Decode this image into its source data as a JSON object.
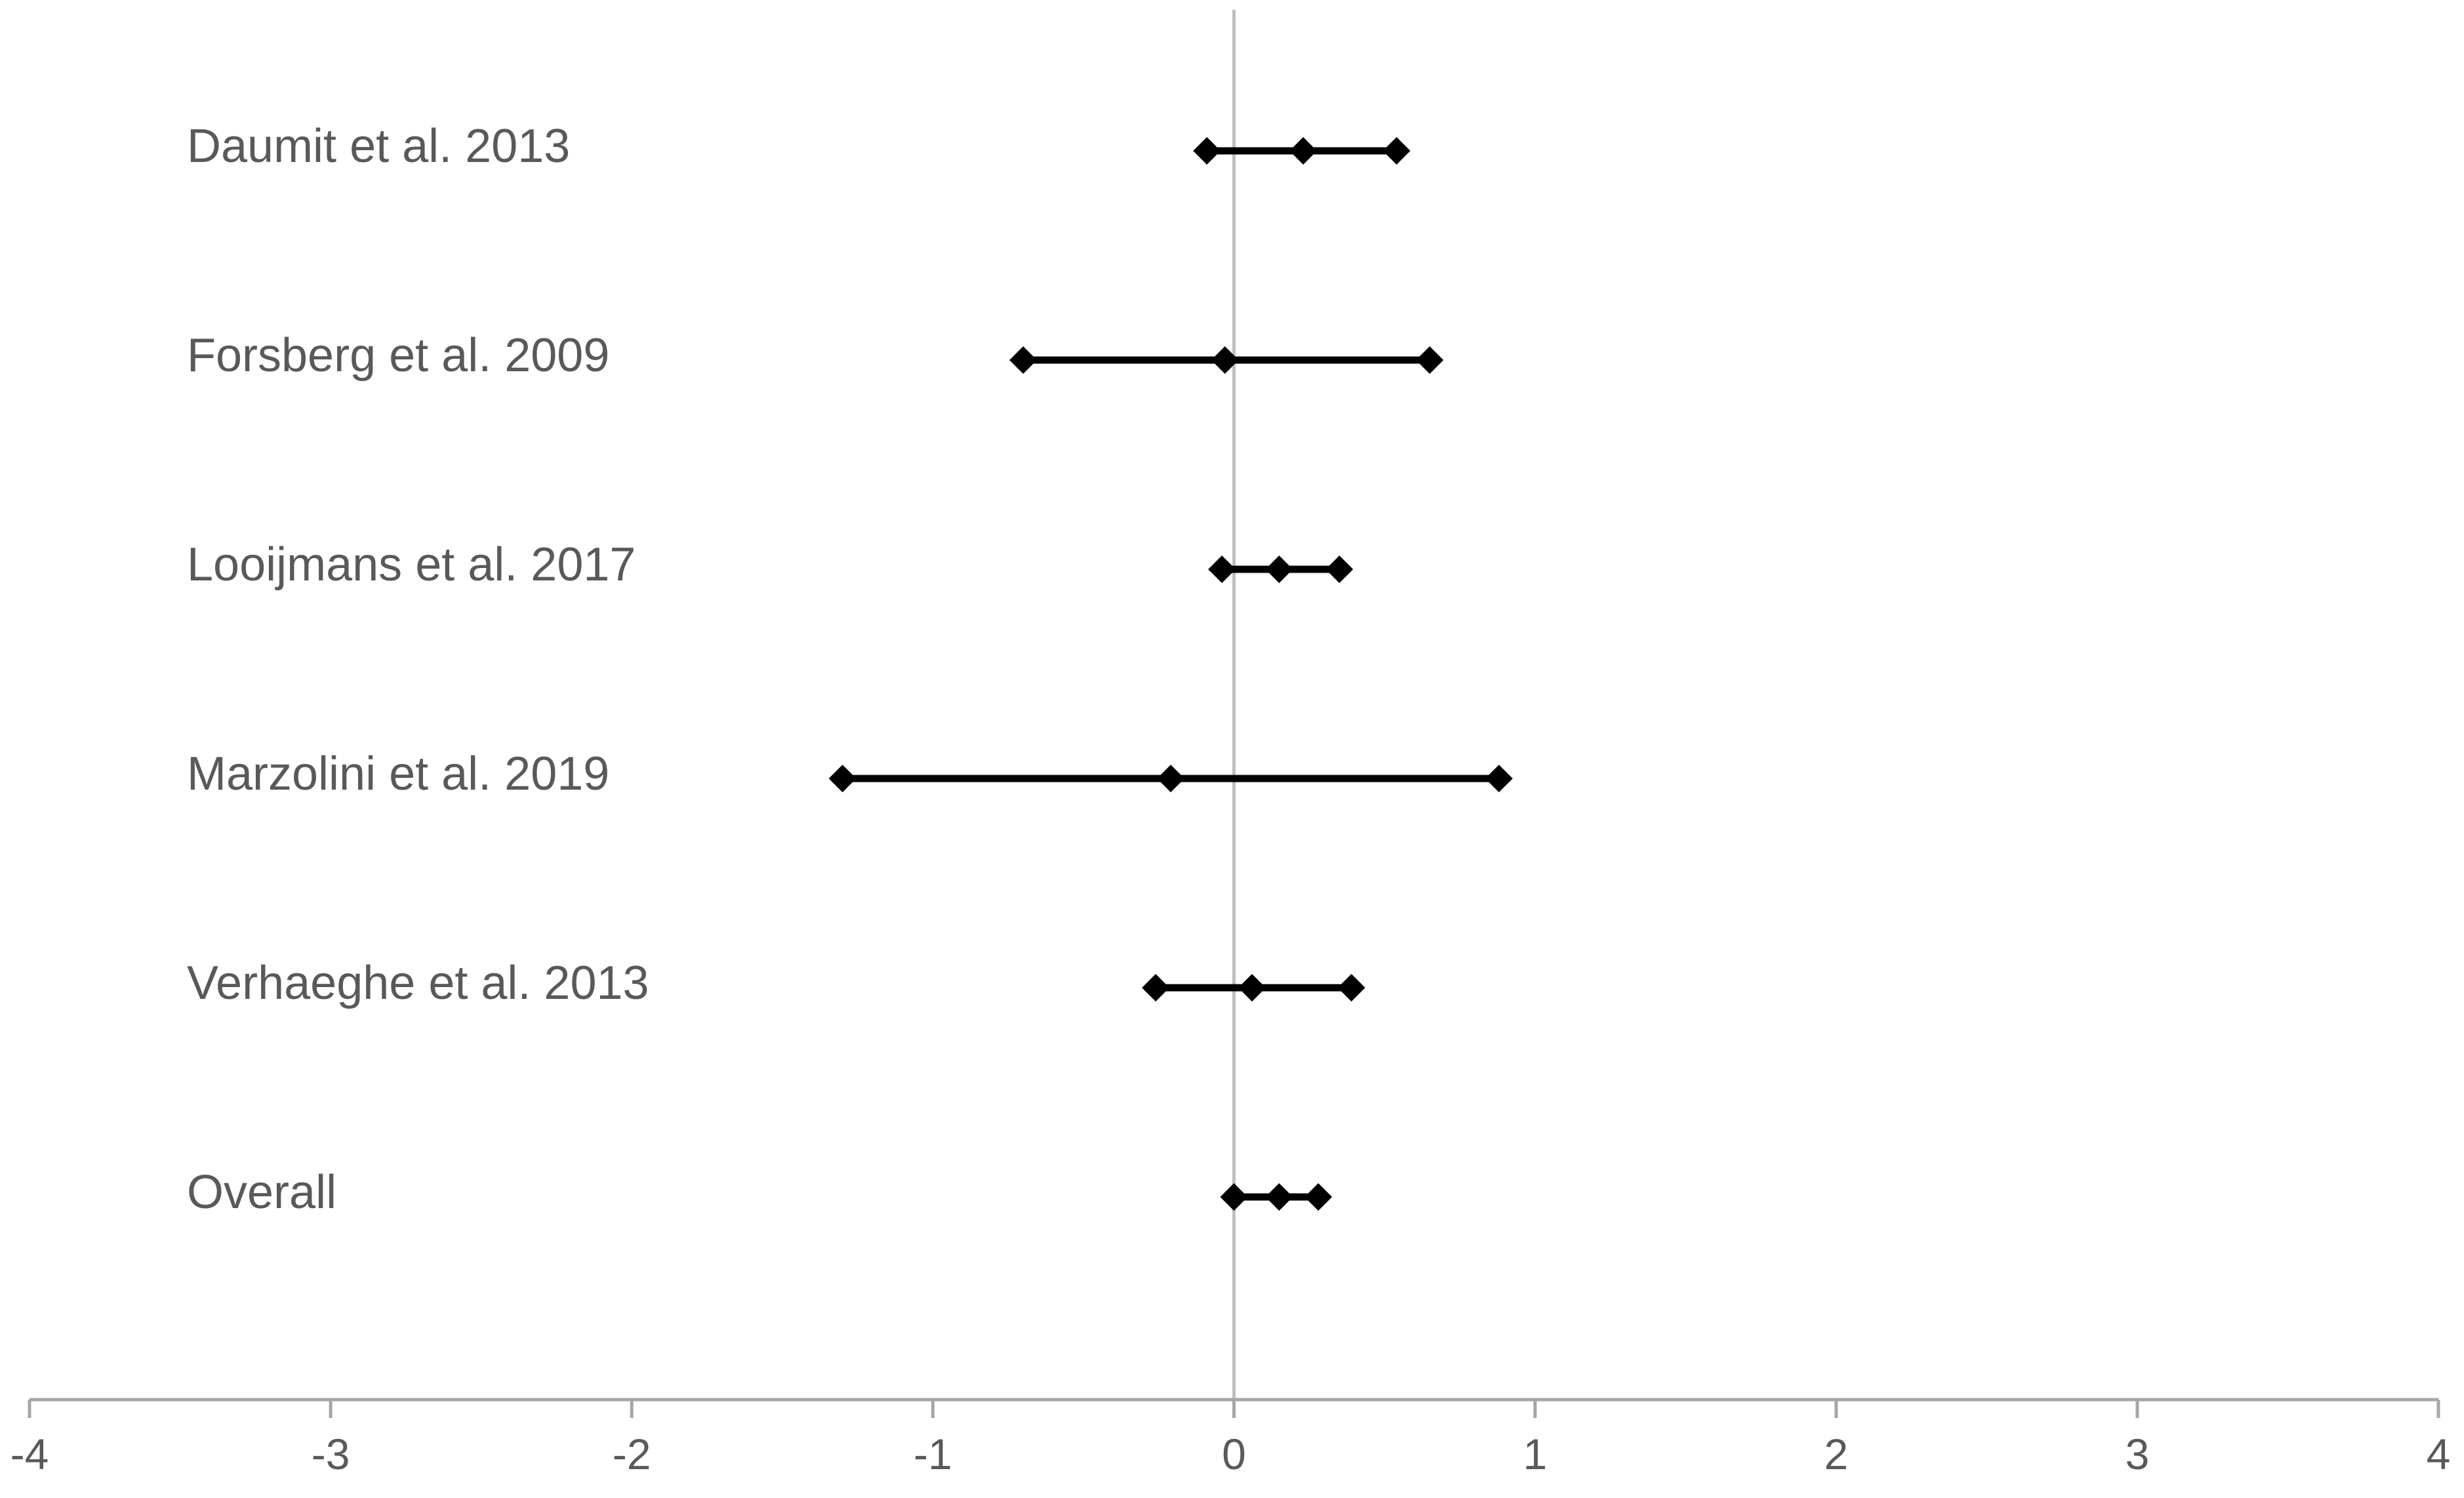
{
  "chart_data": {
    "type": "scatter",
    "subtype": "forest-plot",
    "title": "",
    "xlabel": "",
    "ylabel": "",
    "xlim": [
      -4,
      4
    ],
    "xticks": [
      -4,
      -3,
      -2,
      -1,
      0,
      1,
      2,
      3,
      4
    ],
    "xtick_labels": [
      "-4",
      "-3",
      "-2",
      "-1",
      "0",
      "1",
      "2",
      "3",
      "4"
    ],
    "reference_line": 0,
    "grid": false,
    "legend": "none",
    "colors": {
      "marker": "#000000",
      "reference_line": "#bfbfbf",
      "axis": "#a6a6a6",
      "label_text": "#595959"
    },
    "rows": [
      {
        "label": "Daumit et al. 2013",
        "lower": -0.09,
        "estimate": 0.23,
        "upper": 0.54
      },
      {
        "label": "Forsberg et al. 2009",
        "lower": -0.7,
        "estimate": -0.03,
        "upper": 0.65
      },
      {
        "label": "Looijmans et al. 2017",
        "lower": -0.04,
        "estimate": 0.15,
        "upper": 0.35
      },
      {
        "label": "Marzolini et al. 2019",
        "lower": -1.3,
        "estimate": -0.21,
        "upper": 0.88
      },
      {
        "label": "Verhaeghe et al. 2013",
        "lower": -0.26,
        "estimate": 0.06,
        "upper": 0.39
      },
      {
        "label": "Overall",
        "lower": 0.0,
        "estimate": 0.15,
        "upper": 0.28
      }
    ]
  }
}
